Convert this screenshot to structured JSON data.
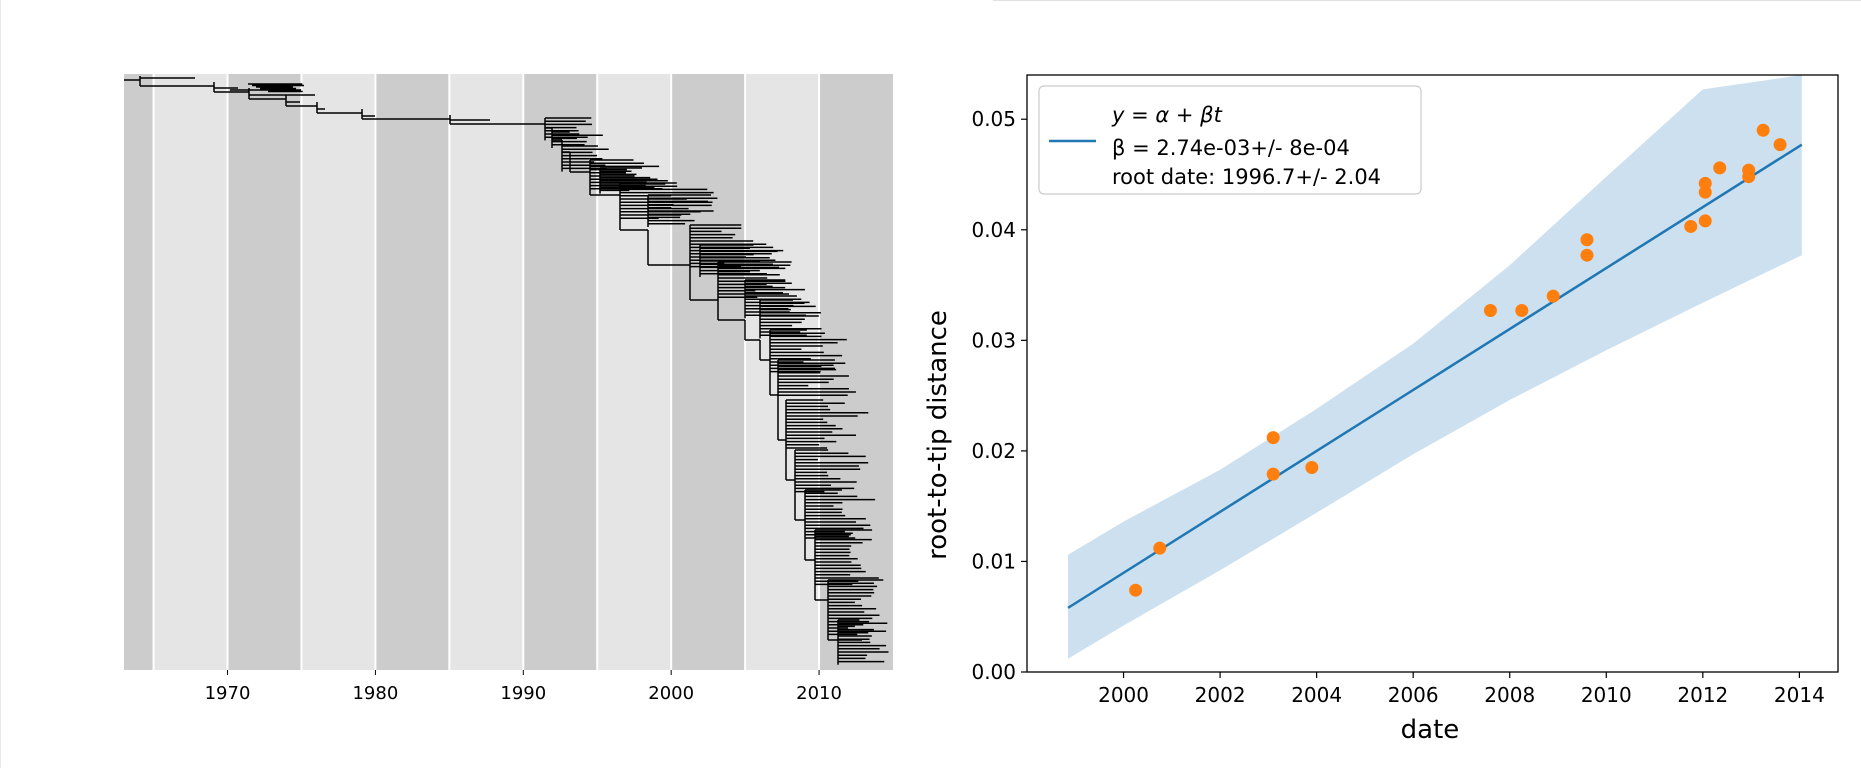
{
  "chart_data": [
    {
      "type": "tree",
      "xlim": [
        1963,
        2015
      ],
      "x_ticks": [
        1970,
        1980,
        1990,
        2000,
        2010
      ],
      "x_tick_labels": [
        "1970",
        "1980",
        "1990",
        "2000",
        "2010"
      ],
      "bands": [
        {
          "start": 1963,
          "end": 1965,
          "shade": "dark"
        },
        {
          "start": 1965,
          "end": 1970,
          "shade": "light"
        },
        {
          "start": 1970,
          "end": 1975,
          "shade": "dark"
        },
        {
          "start": 1975,
          "end": 1980,
          "shade": "light"
        },
        {
          "start": 1980,
          "end": 1985,
          "shade": "dark"
        },
        {
          "start": 1985,
          "end": 1990,
          "shade": "light"
        },
        {
          "start": 1990,
          "end": 1995,
          "shade": "dark"
        },
        {
          "start": 1995,
          "end": 2000,
          "shade": "light"
        },
        {
          "start": 2000,
          "end": 2005,
          "shade": "dark"
        },
        {
          "start": 2005,
          "end": 2010,
          "shade": "light"
        },
        {
          "start": 2010,
          "end": 2015,
          "shade": "dark"
        }
      ],
      "colors": {
        "dark_band": "#cccccc",
        "light_band": "#e5e5e5",
        "branch": "#000000"
      }
    },
    {
      "type": "scatter",
      "xlabel": "date",
      "ylabel": "root-to-tip distance",
      "xlim": [
        1998.0,
        2014.8
      ],
      "ylim": [
        0.0,
        0.054
      ],
      "x_ticks": [
        2000,
        2002,
        2004,
        2006,
        2008,
        2010,
        2012,
        2014
      ],
      "x_tick_labels": [
        "2000",
        "2002",
        "2004",
        "2006",
        "2008",
        "2010",
        "2012",
        "2014"
      ],
      "y_ticks": [
        0.0,
        0.01,
        0.02,
        0.03,
        0.04,
        0.05
      ],
      "y_tick_labels": [
        "0.00",
        "0.01",
        "0.02",
        "0.03",
        "0.04",
        "0.05"
      ],
      "fit_line": {
        "x": [
          1998.85,
          2014.05
        ],
        "y": [
          0.0058,
          0.0477
        ]
      },
      "confidence_band": {
        "x": [
          1998.85,
          2000,
          2002,
          2004,
          2006,
          2008,
          2010,
          2012,
          2014.05
        ],
        "upper": [
          0.0106,
          0.0136,
          0.0183,
          0.0238,
          0.0297,
          0.0368,
          0.0448,
          0.0527,
          0.054
        ],
        "lower": [
          0.0012,
          0.0042,
          0.0092,
          0.0144,
          0.0197,
          0.0246,
          0.0291,
          0.0334,
          0.0377
        ]
      },
      "points": {
        "x": [
          2000.25,
          2000.75,
          2003.1,
          2003.1,
          2003.9,
          2007.6,
          2008.25,
          2008.9,
          2009.6,
          2009.6,
          2011.75,
          2012.05,
          2012.05,
          2012.05,
          2012.35,
          2012.95,
          2012.95,
          2013.25,
          2013.6
        ],
        "y": [
          0.0074,
          0.0112,
          0.0212,
          0.0179,
          0.0185,
          0.0327,
          0.0327,
          0.034,
          0.0377,
          0.0391,
          0.0403,
          0.0408,
          0.0434,
          0.0442,
          0.0456,
          0.0448,
          0.0454,
          0.049,
          0.0477
        ]
      },
      "legend": {
        "placement": "upper-left",
        "line1": "y = α + βt",
        "line2": "β = 2.74e-03+/- 8e-04",
        "line3": "root date: 1996.7+/- 2.04"
      },
      "colors": {
        "line": "#1f77b4",
        "band": "#cde0ef",
        "points": "#ff7f0e"
      }
    }
  ]
}
